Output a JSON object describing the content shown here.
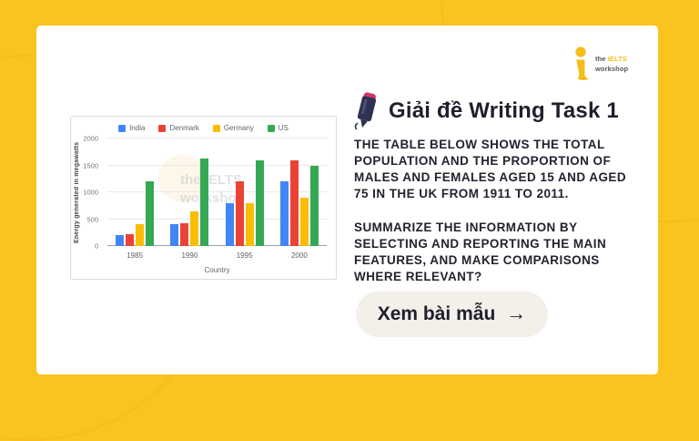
{
  "banner": {
    "bg_color": "#FBC31E",
    "card_color": "#FFFFFF"
  },
  "logo": {
    "word_the": "the",
    "word_ielts": "IELTS",
    "word_workshop": "workshop",
    "yellow": "#F5BE17",
    "gray": "#54545E"
  },
  "header": {
    "title": "Giải đề Writing Task 1"
  },
  "task": {
    "paragraph1": "THE TABLE BELOW SHOWS THE TOTAL\nPOPULATION AND THE PROPORTION OF\nMALES AND FEMALES AGED 15 AND AGED\n75 IN THE UK FROM 1911 TO 2011.",
    "paragraph2": "SUMMARIZE THE INFORMATION BY\nSELECTING AND REPORTING THE MAIN\nFEATURES, AND MAKE COMPARISONS\nWHERE RELEVANT?"
  },
  "cta": {
    "label": "Xem bài mẫu",
    "arrow": "→",
    "bg_color": "#F2F0E9"
  },
  "chart_data": {
    "type": "bar",
    "title": "",
    "categories": [
      "1985",
      "1990",
      "1995",
      "2000"
    ],
    "series": [
      {
        "name": "India",
        "color": "#4285F4",
        "values": [
          200,
          400,
          800,
          1200
        ]
      },
      {
        "name": "Denmark",
        "color": "#EA4335",
        "values": [
          220,
          430,
          1200,
          1600
        ]
      },
      {
        "name": "Germany",
        "color": "#FBBC05",
        "values": [
          400,
          650,
          800,
          900
        ]
      },
      {
        "name": "US",
        "color": "#34A853",
        "values": [
          1200,
          1620,
          1600,
          1500
        ]
      }
    ],
    "xlabel": "Country",
    "ylabel": "Energy generated in megawatts",
    "ylim": [
      0,
      2000
    ],
    "yticks": [
      0,
      500,
      1000,
      1500,
      2000
    ],
    "legend_position": "top",
    "grid": true,
    "watermark": "the IELTS\nworkshop"
  }
}
